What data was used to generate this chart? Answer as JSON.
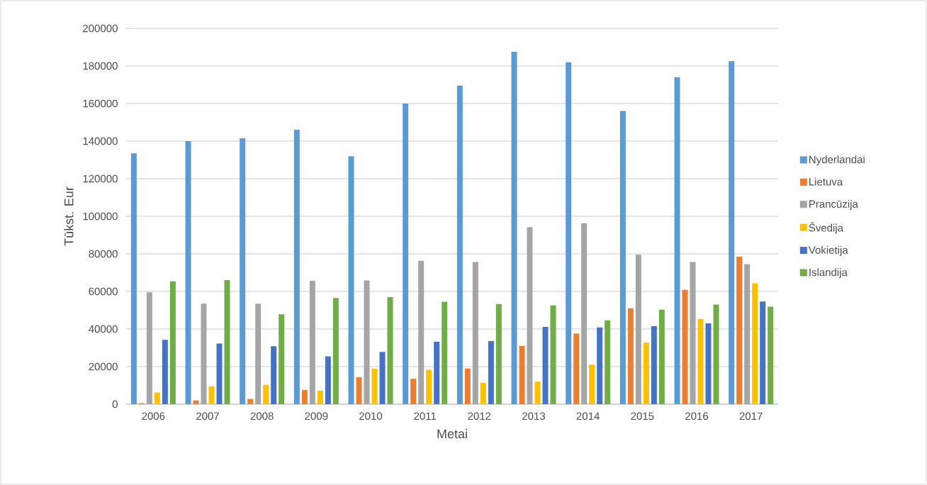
{
  "chart_data": {
    "type": "bar",
    "xlabel": "Metai",
    "ylabel": "Tūkst. Eur",
    "categories": [
      "2006",
      "2007",
      "2008",
      "2009",
      "2010",
      "2011",
      "2012",
      "2013",
      "2014",
      "2015",
      "2016",
      "2017"
    ],
    "series": [
      {
        "name": "Nyderlandai",
        "color": "#5b9bd5",
        "values": [
          133500,
          140000,
          141500,
          146000,
          132000,
          160000,
          169500,
          187500,
          182000,
          156000,
          174000,
          182500
        ]
      },
      {
        "name": "Lietuva",
        "color": "#ed7d31",
        "values": [
          500,
          2000,
          2800,
          7500,
          14300,
          13500,
          19000,
          31000,
          37500,
          51000,
          60800,
          78500
        ]
      },
      {
        "name": "Prancūzija",
        "color": "#a5a5a5",
        "values": [
          59500,
          53500,
          53500,
          65700,
          65800,
          76300,
          75700,
          94200,
          96300,
          79500,
          75700,
          74500
        ]
      },
      {
        "name": "Švedija",
        "color": "#ffc000",
        "values": [
          6200,
          9500,
          10300,
          7200,
          18800,
          18300,
          11300,
          12000,
          21000,
          32700,
          45300,
          64300
        ]
      },
      {
        "name": "Vokietija",
        "color": "#4472c4",
        "values": [
          34200,
          32300,
          30800,
          25400,
          27800,
          33200,
          33600,
          41100,
          40800,
          41500,
          43000,
          54600
        ]
      },
      {
        "name": "Islandija",
        "color": "#70ad47",
        "values": [
          65400,
          66000,
          47800,
          56500,
          57000,
          54500,
          53300,
          52500,
          44600,
          50300,
          53000,
          51900
        ]
      }
    ],
    "ylim": [
      0,
      200000
    ],
    "yticks": [
      0,
      20000,
      40000,
      60000,
      80000,
      100000,
      120000,
      140000,
      160000,
      180000,
      200000
    ],
    "grid": "y",
    "legend": "right"
  }
}
